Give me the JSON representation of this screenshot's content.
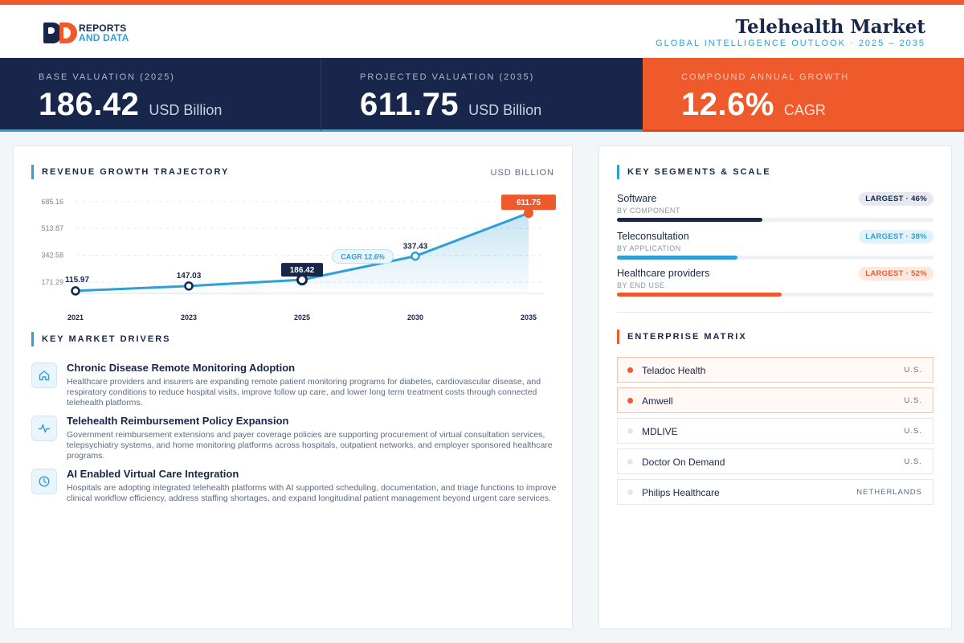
{
  "brand": {
    "line1": "REPORTS",
    "line2": "AND DATA"
  },
  "header": {
    "title": "Telehealth Market",
    "subtitle": "GLOBAL INTELLIGENCE OUTLOOK  ·  2025 – 2035"
  },
  "kpis": [
    {
      "label": "BASE VALUATION (2025)",
      "value": "186.42",
      "unit": "USD Billion"
    },
    {
      "label": "PROJECTED VALUATION (2035)",
      "value": "611.75",
      "unit": "USD Billion"
    },
    {
      "label": "COMPOUND ANNUAL GROWTH",
      "value": "12.6%",
      "unit": "CAGR"
    }
  ],
  "chart_section": {
    "title": "REVENUE GROWTH TRAJECTORY",
    "unit": "USD BILLION"
  },
  "chart_data": {
    "type": "area",
    "x": [
      "2021",
      "2023",
      "2025",
      "2030",
      "2035"
    ],
    "values": [
      115.97,
      147.03,
      186.42,
      337.43,
      611.75
    ],
    "labels": [
      "115.97",
      "147.03",
      "186.42",
      "337.43",
      "611.75"
    ],
    "yticks": [
      "171.29",
      "342.58",
      "513.87",
      "685.16"
    ],
    "ytick_values": [
      171.29,
      342.58,
      513.87,
      685.16
    ],
    "ylim": [
      100,
      715
    ],
    "annotation": "CAGR 12.6%",
    "grid": true,
    "colors": {
      "line": "#2f9fd6",
      "highlight": "#17264a",
      "end": "#ef5a2c"
    }
  },
  "drivers": {
    "title": "KEY MARKET DRIVERS",
    "items": [
      {
        "icon": "home-icon",
        "title": "Chronic Disease Remote Monitoring Adoption",
        "desc": "Healthcare providers and insurers are expanding remote patient monitoring programs for diabetes, cardiovascular disease, and respiratory conditions to reduce hospital visits, improve follow up care, and lower long term treatment costs through connected telehealth platforms."
      },
      {
        "icon": "pulse-icon",
        "title": "Telehealth Reimbursement Policy Expansion",
        "desc": "Government reimbursement extensions and payer coverage policies are supporting procurement of virtual consultation services, telepsychiatry systems, and home monitoring platforms across hospitals, outpatient networks, and employer sponsored healthcare programs."
      },
      {
        "icon": "clock-icon",
        "title": "AI Enabled Virtual Care Integration",
        "desc": "Hospitals are adopting integrated telehealth platforms with AI supported scheduling, documentation, and triage functions to improve clinical workflow efficiency, address staffing shortages, and expand longitudinal patient management beyond urgent care services."
      }
    ]
  },
  "segments": {
    "title": "KEY SEGMENTS & SCALE",
    "items": [
      {
        "name": "Software",
        "category": "BY COMPONENT",
        "badge": "LARGEST · 46%",
        "share": 0.46,
        "color": "#17264a"
      },
      {
        "name": "Teleconsultation",
        "category": "BY APPLICATION",
        "badge": "LARGEST · 38%",
        "share": 0.38,
        "color": "#2f9fd6"
      },
      {
        "name": "Healthcare providers",
        "category": "BY END USE",
        "badge": "LARGEST · 52%",
        "share": 0.52,
        "color": "#ef5a2c"
      }
    ]
  },
  "enterprises": {
    "title": "ENTERPRISE MATRIX",
    "items": [
      {
        "name": "Teladoc Health",
        "country": "U.S.",
        "highlight": true
      },
      {
        "name": "Amwell",
        "country": "U.S.",
        "highlight": true
      },
      {
        "name": "MDLIVE",
        "country": "U.S.",
        "highlight": false
      },
      {
        "name": "Doctor On Demand",
        "country": "U.S.",
        "highlight": false
      },
      {
        "name": "Philips Healthcare",
        "country": "NETHERLANDS",
        "highlight": false
      }
    ]
  }
}
